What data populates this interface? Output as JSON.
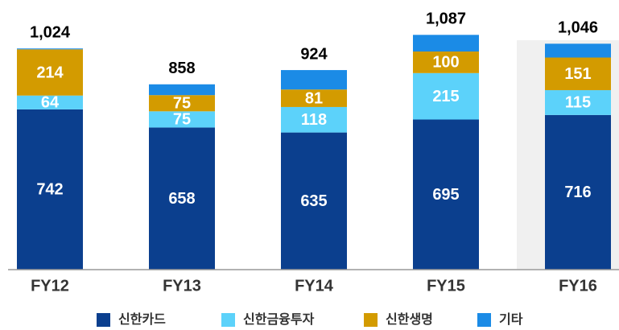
{
  "chart_data": {
    "type": "stacked_bar",
    "categories": [
      "FY12",
      "FY13",
      "FY14",
      "FY15",
      "FY16"
    ],
    "series": [
      {
        "name": "신한카드",
        "color": "#0b3f8e",
        "values": [
          742,
          658,
          635,
          695,
          716
        ],
        "show_labels": true
      },
      {
        "name": "신한금융투자",
        "color": "#5cd2fa",
        "values": [
          64,
          75,
          118,
          215,
          115
        ],
        "show_labels": true
      },
      {
        "name": "신한생명",
        "color": "#d39b00",
        "values": [
          214,
          75,
          81,
          100,
          151
        ],
        "show_labels": true
      },
      {
        "name": "기타",
        "color": "#1b8be6",
        "values": [
          4,
          50,
          90,
          77,
          64
        ],
        "show_labels": false
      }
    ],
    "totals": [
      1024,
      858,
      924,
      1087,
      1046
    ],
    "total_labels": [
      "1,024",
      "858",
      "924",
      "1,087",
      "1,046"
    ],
    "ylim": [
      0,
      1200
    ],
    "highlight": 4
  }
}
